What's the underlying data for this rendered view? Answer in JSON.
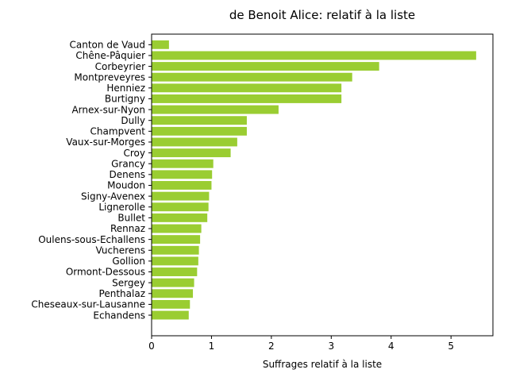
{
  "chart_data": {
    "type": "bar",
    "orientation": "horizontal",
    "title": "de Benoit Alice: relatif à la liste",
    "xlabel": "Suffrages relatif à la liste",
    "ylabel": "",
    "xlim": [
      0,
      5.7
    ],
    "xticks": [
      0,
      1,
      2,
      3,
      4,
      5
    ],
    "bar_color": "#9acd32",
    "grid": false,
    "categories": [
      "Canton de Vaud",
      "Chêne-Pâquier",
      "Corbeyrier",
      "Montpreveyres",
      "Henniez",
      "Burtigny",
      "Arnex-sur-Nyon",
      "Dully",
      "Champvent",
      "Vaux-sur-Morges",
      "Croy",
      "Grancy",
      "Denens",
      "Moudon",
      "Signy-Avenex",
      "Lignerolle",
      "Bullet",
      "Rennaz",
      "Oulens-sous-Echallens",
      "Vucherens",
      "Gollion",
      "Ormont-Dessous",
      "Sergey",
      "Penthalaz",
      "Cheseaux-sur-Lausanne",
      "Echandens"
    ],
    "values": [
      0.29,
      5.42,
      3.8,
      3.35,
      3.17,
      3.17,
      2.12,
      1.59,
      1.59,
      1.43,
      1.32,
      1.03,
      1.01,
      1.0,
      0.96,
      0.95,
      0.93,
      0.83,
      0.81,
      0.79,
      0.78,
      0.76,
      0.71,
      0.69,
      0.64,
      0.62
    ]
  }
}
